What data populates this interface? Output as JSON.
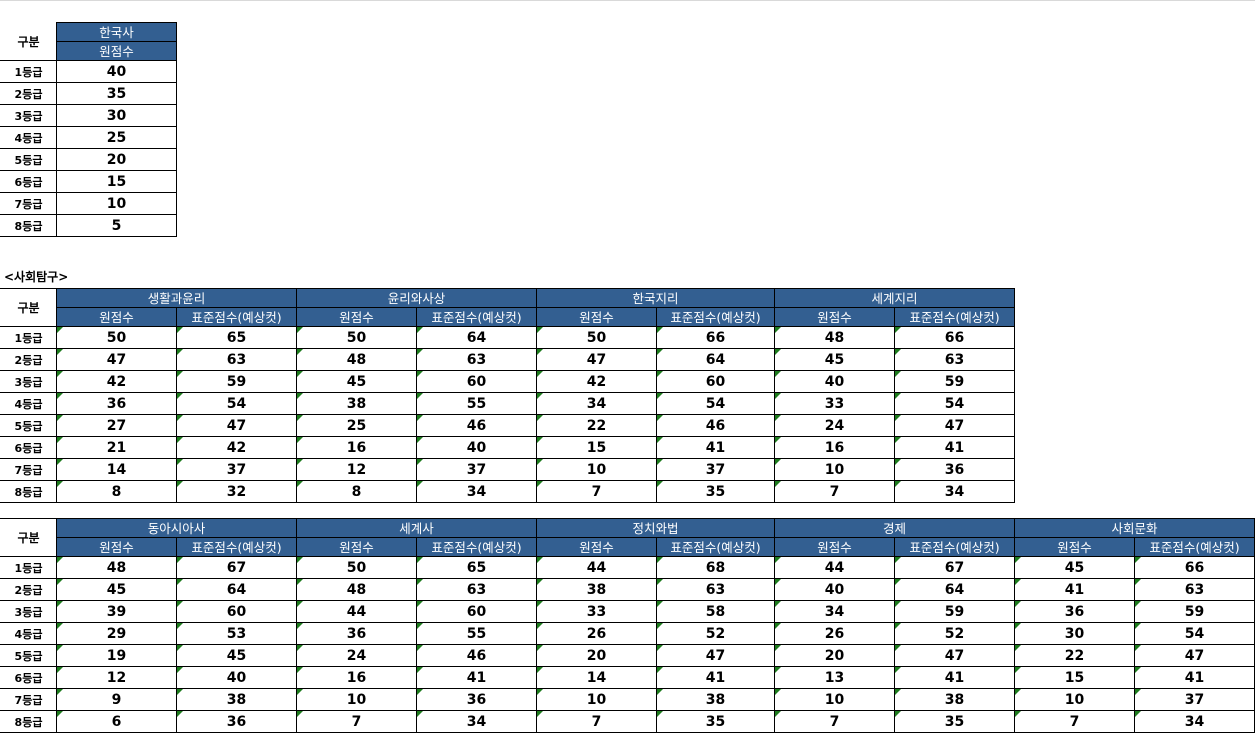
{
  "history_table": {
    "gubun": "구분",
    "subject": "한국사",
    "col": "원점수",
    "rows": [
      {
        "grade": "1등급",
        "raw": "40"
      },
      {
        "grade": "2등급",
        "raw": "35"
      },
      {
        "grade": "3등급",
        "raw": "30"
      },
      {
        "grade": "4등급",
        "raw": "25"
      },
      {
        "grade": "5등급",
        "raw": "20"
      },
      {
        "grade": "6등급",
        "raw": "15"
      },
      {
        "grade": "7등급",
        "raw": "10"
      },
      {
        "grade": "8등급",
        "raw": "5"
      }
    ]
  },
  "section_label": "<사회탐구>",
  "social1": {
    "gubun": "구분",
    "raw_label": "원점수",
    "std_label": "표준점수(예상컷)",
    "subjects": [
      "생활과윤리",
      "윤리와사상",
      "한국지리",
      "세계지리"
    ],
    "grades": [
      "1등급",
      "2등급",
      "3등급",
      "4등급",
      "5등급",
      "6등급",
      "7등급",
      "8등급"
    ],
    "rows": [
      [
        "50",
        "65",
        "50",
        "64",
        "50",
        "66",
        "48",
        "66"
      ],
      [
        "47",
        "63",
        "48",
        "63",
        "47",
        "64",
        "45",
        "63"
      ],
      [
        "42",
        "59",
        "45",
        "60",
        "42",
        "60",
        "40",
        "59"
      ],
      [
        "36",
        "54",
        "38",
        "55",
        "34",
        "54",
        "33",
        "54"
      ],
      [
        "27",
        "47",
        "25",
        "46",
        "22",
        "46",
        "24",
        "47"
      ],
      [
        "21",
        "42",
        "16",
        "40",
        "15",
        "41",
        "16",
        "41"
      ],
      [
        "14",
        "37",
        "12",
        "37",
        "10",
        "37",
        "10",
        "36"
      ],
      [
        "8",
        "32",
        "8",
        "34",
        "7",
        "35",
        "7",
        "34"
      ]
    ]
  },
  "social2": {
    "gubun": "구분",
    "raw_label": "원점수",
    "std_label": "표준점수(예상컷)",
    "subjects": [
      "동아시아사",
      "세계사",
      "정치와법",
      "경제",
      "사회문화"
    ],
    "grades": [
      "1등급",
      "2등급",
      "3등급",
      "4등급",
      "5등급",
      "6등급",
      "7등급",
      "8등급"
    ],
    "rows": [
      [
        "48",
        "67",
        "50",
        "65",
        "44",
        "68",
        "44",
        "67",
        "45",
        "66"
      ],
      [
        "45",
        "64",
        "48",
        "63",
        "38",
        "63",
        "40",
        "64",
        "41",
        "63"
      ],
      [
        "39",
        "60",
        "44",
        "60",
        "33",
        "58",
        "34",
        "59",
        "36",
        "59"
      ],
      [
        "29",
        "53",
        "36",
        "55",
        "26",
        "52",
        "26",
        "52",
        "30",
        "54"
      ],
      [
        "19",
        "45",
        "24",
        "46",
        "20",
        "47",
        "20",
        "47",
        "22",
        "47"
      ],
      [
        "12",
        "40",
        "16",
        "41",
        "14",
        "41",
        "13",
        "41",
        "15",
        "41"
      ],
      [
        "9",
        "38",
        "10",
        "36",
        "10",
        "38",
        "10",
        "38",
        "10",
        "37"
      ],
      [
        "6",
        "36",
        "7",
        "34",
        "7",
        "35",
        "7",
        "35",
        "7",
        "34"
      ]
    ]
  },
  "colors": {
    "header_bg": "#335f91",
    "header_text": "#ffffff",
    "indicator": "#1e7c1e",
    "border": "#000000"
  }
}
